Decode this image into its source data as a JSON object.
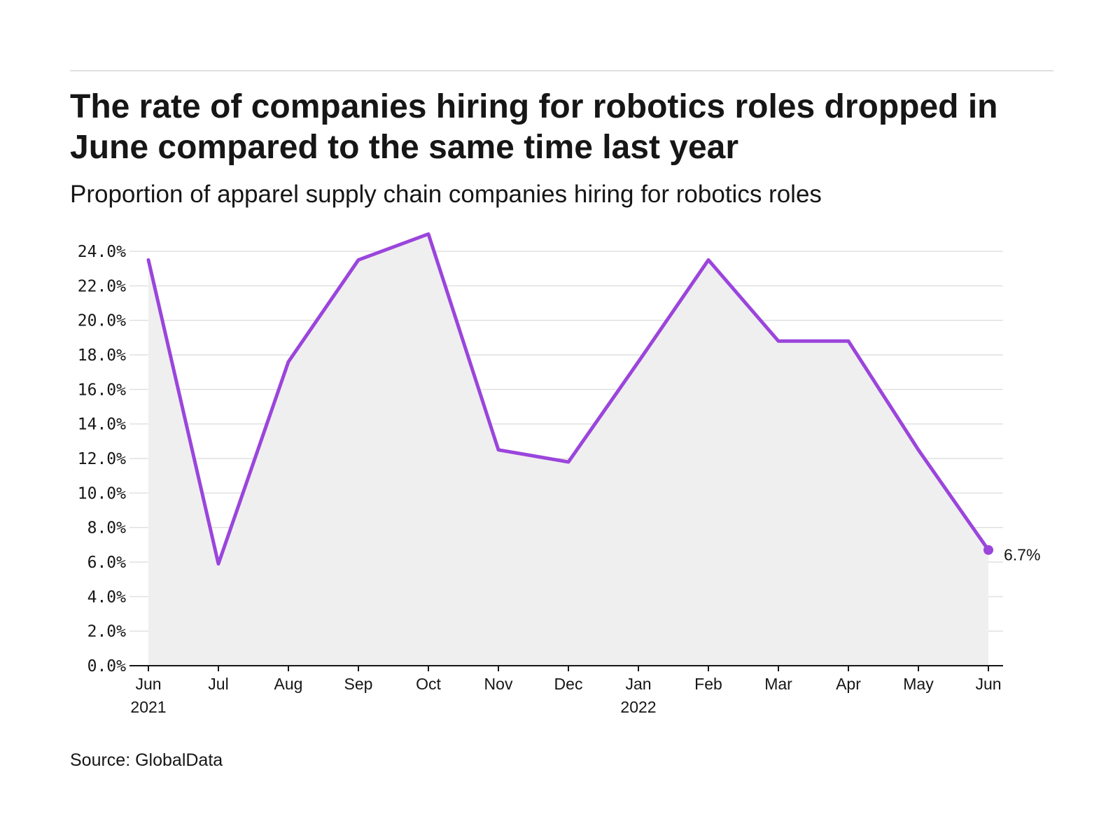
{
  "title": "The rate of companies hiring for robotics roles dropped in June compared to the same time last year",
  "subtitle": "Proportion of apparel supply chain companies hiring for robotics roles",
  "source": "Source: GlobalData",
  "colors": {
    "line": "#9b45dc",
    "area": "#efefef",
    "grid": "#e0e0e0",
    "axis": "#161616"
  },
  "chart_data": {
    "type": "area",
    "categories": [
      "Jun",
      "Jul",
      "Aug",
      "Sep",
      "Oct",
      "Nov",
      "Dec",
      "Jan",
      "Feb",
      "Mar",
      "Apr",
      "May",
      "Jun"
    ],
    "year_labels": [
      "2021",
      "",
      "",
      "",
      "",
      "",
      "",
      "2022",
      "",
      "",
      "",
      "",
      ""
    ],
    "series": [
      {
        "values": [
          23.5,
          5.9,
          17.6,
          23.5,
          25.0,
          12.5,
          11.8,
          17.6,
          23.5,
          18.8,
          18.8,
          12.5,
          6.7
        ]
      }
    ],
    "end_label": "6.7%",
    "yticks": [
      "0.0%",
      "2.0%",
      "4.0%",
      "6.0%",
      "8.0%",
      "10.0%",
      "12.0%",
      "14.0%",
      "16.0%",
      "18.0%",
      "20.0%",
      "22.0%",
      "24.0%"
    ],
    "ylim": [
      0,
      24
    ],
    "xlabel": "",
    "ylabel": "",
    "grid": true,
    "legend": "none"
  }
}
